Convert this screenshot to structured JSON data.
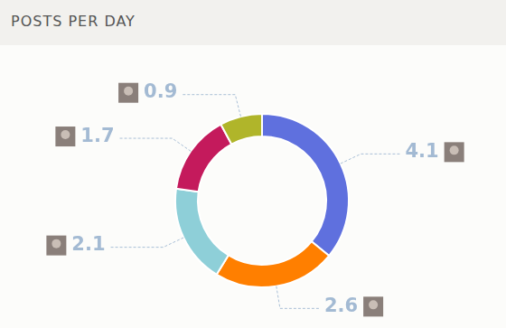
{
  "chart_data": {
    "type": "doughnut",
    "title": "POSTS PER DAY",
    "categories": [
      null,
      null,
      null,
      null,
      null
    ],
    "values": [
      4.1,
      2.6,
      2.1,
      1.7,
      0.9
    ],
    "colors": [
      "#5f70de",
      "#ff7f00",
      "#8ecfd8",
      "#c41a5c",
      "#b0b52a"
    ],
    "data_labels": true
  }
}
